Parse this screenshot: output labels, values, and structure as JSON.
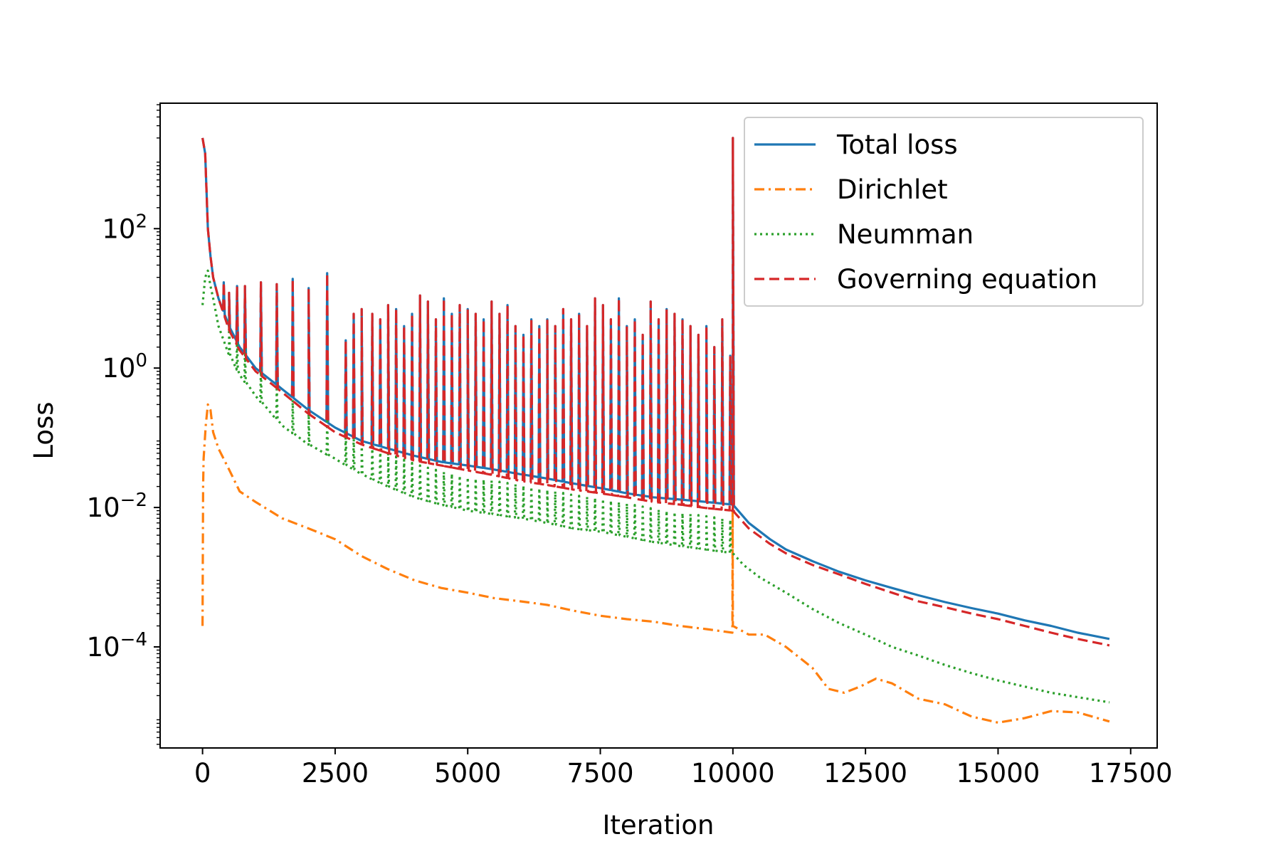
{
  "chart_data": {
    "type": "line",
    "title": "",
    "xlabel": "Iteration",
    "ylabel": "Loss",
    "xlim": [
      -800,
      18000
    ],
    "ylim_log10": [
      -5.45,
      3.8
    ],
    "yscale": "log",
    "grid": false,
    "legend_position": "top-right",
    "x_ticks": [
      0,
      2500,
      5000,
      7500,
      10000,
      12500,
      15000,
      17500
    ],
    "x_tick_labels": [
      "0",
      "2500",
      "5000",
      "7500",
      "10000",
      "12500",
      "15000",
      "17500"
    ],
    "y_ticks_log10": [
      -4,
      -2,
      0,
      2
    ],
    "y_tick_labels": [
      {
        "base": "10",
        "exp": "−4"
      },
      {
        "base": "10",
        "exp": "−2"
      },
      {
        "base": "10",
        "exp": "0"
      },
      {
        "base": "10",
        "exp": "2"
      }
    ],
    "series": [
      {
        "name": "Total loss",
        "color": "#1f77b4",
        "style": "solid",
        "x": [
          0,
          50,
          100,
          150,
          200,
          300,
          500,
          700,
          1000,
          1500,
          2000,
          2500,
          3000,
          3500,
          4000,
          4500,
          5000,
          5500,
          6000,
          6500,
          7000,
          7500,
          8000,
          8500,
          9000,
          9500,
          10000,
          10300,
          10700,
          11000,
          11500,
          12000,
          12500,
          13000,
          13500,
          14000,
          14500,
          15000,
          15500,
          16000,
          16500,
          17100
        ],
        "y": [
          2000,
          1200,
          100,
          40,
          20,
          10,
          4,
          2,
          1,
          0.5,
          0.25,
          0.14,
          0.09,
          0.07,
          0.055,
          0.045,
          0.04,
          0.035,
          0.03,
          0.026,
          0.022,
          0.019,
          0.016,
          0.014,
          0.013,
          0.012,
          0.011,
          0.006,
          0.0035,
          0.0025,
          0.0017,
          0.0012,
          0.0009,
          0.0007,
          0.00055,
          0.00044,
          0.00036,
          0.0003,
          0.00024,
          0.0002,
          0.00016,
          0.00013
        ]
      },
      {
        "name": "Dirichlet",
        "color": "#ff7f0e",
        "style": "dashdot",
        "x": [
          0,
          10,
          20,
          60,
          100,
          150,
          200,
          300,
          500,
          700,
          1000,
          1500,
          2000,
          2500,
          3000,
          3500,
          4000,
          4500,
          5000,
          5500,
          6000,
          6500,
          7000,
          7500,
          8000,
          8500,
          9000,
          9500,
          9990,
          9995,
          10000,
          10300,
          10600,
          11000,
          11500,
          11800,
          12100,
          12400,
          12700,
          13000,
          13500,
          14000,
          14500,
          15000,
          15500,
          16000,
          16500,
          17100
        ],
        "y": [
          0.0002,
          0.02,
          0.05,
          0.15,
          0.3,
          0.25,
          0.12,
          0.07,
          0.035,
          0.017,
          0.012,
          0.007,
          0.005,
          0.0035,
          0.002,
          0.0013,
          0.0009,
          0.0007,
          0.0006,
          0.0005,
          0.00045,
          0.0004,
          0.00033,
          0.00028,
          0.00025,
          0.00023,
          0.0002,
          0.00018,
          0.00016,
          0.01,
          0.0002,
          0.00015,
          0.00015,
          0.0001,
          5e-05,
          2.5e-05,
          2.2e-05,
          2.7e-05,
          3.5e-05,
          3e-05,
          1.8e-05,
          1.5e-05,
          1e-05,
          8.2e-06,
          9.5e-06,
          1.2e-05,
          1.15e-05,
          8.5e-06
        ]
      },
      {
        "name": "Neumman",
        "color": "#2ca02c",
        "style": "dotted",
        "x": [
          0,
          50,
          100,
          150,
          200,
          300,
          500,
          700,
          1000,
          1500,
          2000,
          2500,
          3000,
          3500,
          4000,
          4500,
          5000,
          5500,
          6000,
          6500,
          7000,
          7500,
          8000,
          8500,
          9000,
          9500,
          10000,
          10200,
          10500,
          11000,
          11500,
          12000,
          12500,
          13000,
          13500,
          14000,
          14500,
          15000,
          15500,
          16000,
          16500,
          17100
        ],
        "y": [
          8,
          20,
          25,
          15,
          10,
          4,
          1.6,
          0.8,
          0.4,
          0.15,
          0.08,
          0.05,
          0.03,
          0.02,
          0.014,
          0.011,
          0.009,
          0.008,
          0.007,
          0.006,
          0.005,
          0.0045,
          0.0038,
          0.0032,
          0.0028,
          0.0025,
          0.0022,
          0.0015,
          0.001,
          0.0006,
          0.00035,
          0.00022,
          0.00015,
          0.0001,
          7.5e-05,
          5.5e-05,
          4.2e-05,
          3.3e-05,
          2.7e-05,
          2.2e-05,
          1.9e-05,
          1.6e-05
        ]
      },
      {
        "name": "Governing equation",
        "color": "#d62728",
        "style": "dashed",
        "x": [
          0,
          50,
          100,
          150,
          200,
          300,
          500,
          700,
          1000,
          1500,
          2000,
          2500,
          3000,
          3500,
          4000,
          4500,
          5000,
          5500,
          6000,
          6500,
          7000,
          7500,
          8000,
          8500,
          9000,
          9500,
          10000,
          10300,
          10700,
          11000,
          11500,
          12000,
          12500,
          13000,
          13500,
          14000,
          14500,
          15000,
          15500,
          16000,
          16500,
          17100
        ],
        "y": [
          2000,
          1200,
          100,
          40,
          20,
          10,
          3.5,
          1.8,
          0.9,
          0.45,
          0.22,
          0.12,
          0.08,
          0.06,
          0.047,
          0.04,
          0.034,
          0.029,
          0.024,
          0.021,
          0.018,
          0.016,
          0.014,
          0.012,
          0.011,
          0.0098,
          0.009,
          0.005,
          0.003,
          0.0022,
          0.0015,
          0.0011,
          0.0008,
          0.0006,
          0.00045,
          0.00037,
          0.0003,
          0.00025,
          0.0002,
          0.00016,
          0.00013,
          0.000105
        ]
      }
    ],
    "spikes": [
      {
        "x": 400,
        "y": 17
      },
      {
        "x": 500,
        "y": 12
      },
      {
        "x": 650,
        "y": 15
      },
      {
        "x": 800,
        "y": 15
      },
      {
        "x": 1100,
        "y": 17
      },
      {
        "x": 1400,
        "y": 16
      },
      {
        "x": 1700,
        "y": 19
      },
      {
        "x": 2000,
        "y": 14
      },
      {
        "x": 2350,
        "y": 23
      },
      {
        "x": 2700,
        "y": 2.5
      },
      {
        "x": 2850,
        "y": 6
      },
      {
        "x": 3000,
        "y": 7
      },
      {
        "x": 3200,
        "y": 6
      },
      {
        "x": 3350,
        "y": 5
      },
      {
        "x": 3500,
        "y": 8
      },
      {
        "x": 3650,
        "y": 7
      },
      {
        "x": 3800,
        "y": 4
      },
      {
        "x": 3950,
        "y": 6
      },
      {
        "x": 4100,
        "y": 11
      },
      {
        "x": 4250,
        "y": 9
      },
      {
        "x": 4400,
        "y": 5
      },
      {
        "x": 4550,
        "y": 10
      },
      {
        "x": 4700,
        "y": 6
      },
      {
        "x": 4850,
        "y": 8
      },
      {
        "x": 5000,
        "y": 7
      },
      {
        "x": 5150,
        "y": 6
      },
      {
        "x": 5300,
        "y": 5
      },
      {
        "x": 5450,
        "y": 9
      },
      {
        "x": 5600,
        "y": 6
      },
      {
        "x": 5750,
        "y": 8
      },
      {
        "x": 5900,
        "y": 4
      },
      {
        "x": 6050,
        "y": 3
      },
      {
        "x": 6200,
        "y": 5
      },
      {
        "x": 6350,
        "y": 4
      },
      {
        "x": 6500,
        "y": 5
      },
      {
        "x": 6650,
        "y": 4
      },
      {
        "x": 6800,
        "y": 7
      },
      {
        "x": 6950,
        "y": 5
      },
      {
        "x": 7100,
        "y": 6
      },
      {
        "x": 7250,
        "y": 4
      },
      {
        "x": 7400,
        "y": 10
      },
      {
        "x": 7550,
        "y": 8
      },
      {
        "x": 7700,
        "y": 5
      },
      {
        "x": 7850,
        "y": 10
      },
      {
        "x": 8000,
        "y": 4
      },
      {
        "x": 8150,
        "y": 5
      },
      {
        "x": 8300,
        "y": 3
      },
      {
        "x": 8450,
        "y": 9
      },
      {
        "x": 8600,
        "y": 5
      },
      {
        "x": 8750,
        "y": 7
      },
      {
        "x": 8900,
        "y": 6
      },
      {
        "x": 9050,
        "y": 5
      },
      {
        "x": 9200,
        "y": 4
      },
      {
        "x": 9350,
        "y": 3
      },
      {
        "x": 9500,
        "y": 4
      },
      {
        "x": 9650,
        "y": 2
      },
      {
        "x": 9800,
        "y": 5
      },
      {
        "x": 9950,
        "y": 1.5
      },
      {
        "x": 10000,
        "y": 2000
      }
    ]
  }
}
